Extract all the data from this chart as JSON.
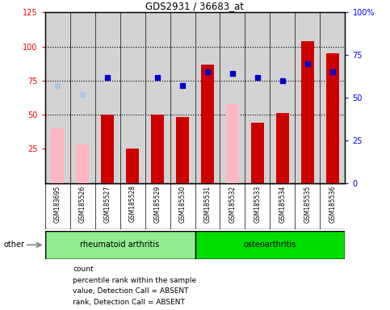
{
  "title": "GDS2931 / 36683_at",
  "samples": [
    "GSM183695",
    "GSM185526",
    "GSM185527",
    "GSM185528",
    "GSM185529",
    "GSM185530",
    "GSM185531",
    "GSM185532",
    "GSM185533",
    "GSM185534",
    "GSM185535",
    "GSM185536"
  ],
  "groups": [
    {
      "label": "rheumatoid arthritis",
      "indices": [
        0,
        1,
        2,
        3,
        4,
        5
      ],
      "color": "#90ee90"
    },
    {
      "label": "osteoarthritis",
      "indices": [
        6,
        7,
        8,
        9,
        10,
        11
      ],
      "color": "#00dd00"
    }
  ],
  "count_values": [
    null,
    null,
    50,
    25,
    50,
    48,
    87,
    null,
    44,
    51,
    104,
    95
  ],
  "count_absent": [
    40,
    28,
    null,
    null,
    null,
    null,
    null,
    58,
    null,
    null,
    null,
    null
  ],
  "percentile_rank": [
    null,
    null,
    62,
    null,
    62,
    57,
    65,
    64,
    62,
    60,
    70,
    65
  ],
  "rank_absent": [
    57,
    52,
    null,
    null,
    null,
    null,
    null,
    null,
    null,
    null,
    null,
    null
  ],
  "ylim_left": [
    0,
    125
  ],
  "yticks_left": [
    25,
    50,
    75,
    100,
    125
  ],
  "yticks_right": [
    0,
    25,
    50,
    75,
    100
  ],
  "ytick_labels_right": [
    "0",
    "25",
    "50",
    "75",
    "100%"
  ],
  "dotted_lines": [
    50,
    75,
    100
  ],
  "bar_color": "#cc0000",
  "absent_bar_color": "#ffb6c1",
  "rank_color": "#0000cc",
  "rank_absent_color": "#aec6e8",
  "legend_items": [
    {
      "color": "#cc0000",
      "label": "count"
    },
    {
      "color": "#0000cc",
      "label": "percentile rank within the sample"
    },
    {
      "color": "#ffb6c1",
      "label": "value, Detection Call = ABSENT"
    },
    {
      "color": "#aec6e8",
      "label": "rank, Detection Call = ABSENT"
    }
  ],
  "other_label": "other",
  "bar_width": 0.5,
  "xlim": [
    -0.5,
    11.5
  ],
  "background_color": "#d3d3d3",
  "n_samples": 12
}
